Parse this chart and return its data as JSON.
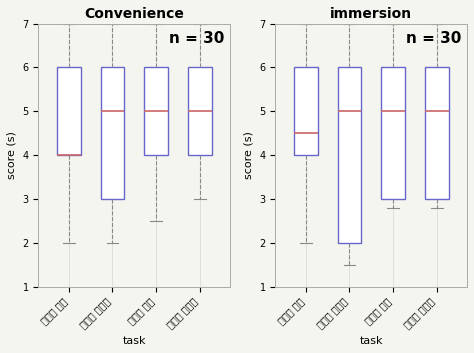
{
  "ylim": [
    1,
    7
  ],
  "yticks": [
    1,
    2,
    3,
    4,
    5,
    6,
    7
  ],
  "box_color": "#6666cc",
  "median_color": "#cc6666",
  "whisker_color": "#888888",
  "bg_color": "#f5f5f0",
  "title_fontsize": 10,
  "label_fontsize": 8,
  "tick_fontsize": 7,
  "n_fontsize": 11,
  "charts": [
    {
      "key": "convenience",
      "title": "Convenience",
      "n_label": "n = 30",
      "xlabel": "task",
      "ylabel": "score (s)",
      "categories": [
        "원거리 버튼",
        "원거리 스크롤",
        "근거리 버튼",
        "근거리 스크롤"
      ],
      "boxes": [
        {
          "q1": 4.0,
          "median": 4.0,
          "q3": 6.0,
          "whislo": 2.0,
          "whishi": 7.0
        },
        {
          "q1": 3.0,
          "median": 5.0,
          "q3": 6.0,
          "whislo": 2.0,
          "whishi": 7.0
        },
        {
          "q1": 4.0,
          "median": 5.0,
          "q3": 6.0,
          "whislo": 2.5,
          "whishi": 7.0
        },
        {
          "q1": 4.0,
          "median": 5.0,
          "q3": 6.0,
          "whislo": 3.0,
          "whishi": 7.0
        }
      ]
    },
    {
      "key": "immersion",
      "title": "immersion",
      "n_label": "n = 30",
      "xlabel": "task",
      "ylabel": "score (s)",
      "categories": [
        "원거리 버튼",
        "원거리 스크롤",
        "근거리 버튼",
        "근거리 스크롤"
      ],
      "boxes": [
        {
          "q1": 4.0,
          "median": 4.5,
          "q3": 6.0,
          "whislo": 2.0,
          "whishi": 7.0
        },
        {
          "q1": 2.0,
          "median": 5.0,
          "q3": 6.0,
          "whislo": 1.5,
          "whishi": 7.0
        },
        {
          "q1": 3.0,
          "median": 5.0,
          "q3": 6.0,
          "whislo": 2.8,
          "whishi": 7.0
        },
        {
          "q1": 3.0,
          "median": 5.0,
          "q3": 6.0,
          "whislo": 2.8,
          "whishi": 7.0
        }
      ]
    }
  ]
}
